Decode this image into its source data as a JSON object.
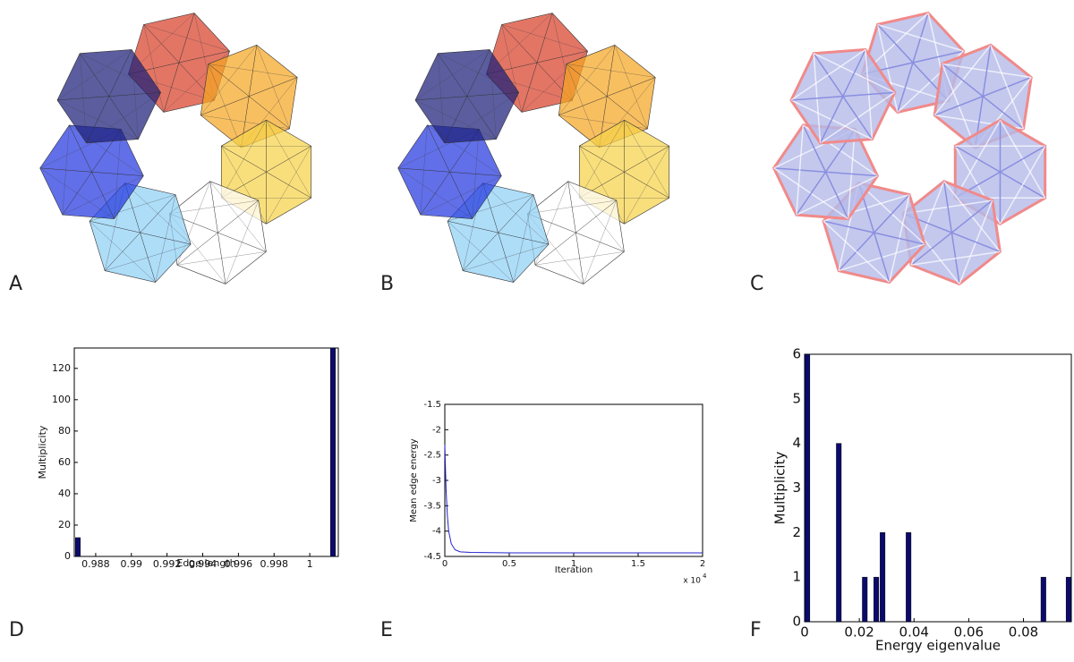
{
  "image_panels": [
    "A",
    "B",
    "C"
  ],
  "chart_data": [
    {
      "type": "bar",
      "panel_label": "D",
      "x_label": "Edge length",
      "y_label": "Multiplicity",
      "x": [
        0.987,
        1.0013
      ],
      "values": [
        12,
        133
      ],
      "color": "#0a0a6e",
      "xlim": [
        0.9868,
        1.0016
      ],
      "xticks": [
        0.988,
        0.99,
        0.992,
        0.994,
        0.996,
        0.998,
        1
      ],
      "ylim": [
        0,
        133
      ],
      "yticks": [
        0,
        20,
        40,
        60,
        80,
        100,
        120
      ]
    },
    {
      "type": "line",
      "panel_label": "E",
      "x_label": "Iteration",
      "y_label": "Mean edge energy",
      "x_multiplier": "x 10",
      "x_exponent": "4",
      "x": [
        0,
        100,
        200,
        300,
        500,
        800,
        1200,
        2000,
        5000,
        10000,
        20000
      ],
      "values": [
        -2.3,
        -3.2,
        -3.7,
        -4.0,
        -4.25,
        -4.37,
        -4.41,
        -4.42,
        -4.43,
        -4.43,
        -4.43
      ],
      "color": "#2222cc",
      "xlim": [
        0,
        20000
      ],
      "xticks": [
        {
          "value": 0,
          "label": "0"
        },
        {
          "value": 5000,
          "label": "0.5"
        },
        {
          "value": 10000,
          "label": "1"
        },
        {
          "value": 15000,
          "label": "1.5"
        },
        {
          "value": 20000,
          "label": "2"
        }
      ],
      "ylim": [
        -4.5,
        -1.5
      ],
      "yticks": [
        -4.5,
        -4,
        -3.5,
        -3,
        -2.5,
        -2,
        -1.5
      ]
    },
    {
      "type": "bar",
      "panel_label": "F",
      "x_label": "Energy eigenvalue",
      "y_label": "Multiplicity",
      "x": [
        0.001,
        0.0125,
        0.022,
        0.0262,
        0.0285,
        0.038,
        0.0873,
        0.0965
      ],
      "values": [
        6,
        4,
        1,
        1,
        2,
        2,
        1,
        1
      ],
      "color": "#0a0a6e",
      "xlim": [
        0,
        0.0975
      ],
      "xticks": [
        0,
        0.02,
        0.04,
        0.06,
        0.08
      ],
      "ylim": [
        0,
        6
      ],
      "yticks": [
        0,
        1,
        2,
        3,
        4,
        5,
        6
      ]
    }
  ]
}
